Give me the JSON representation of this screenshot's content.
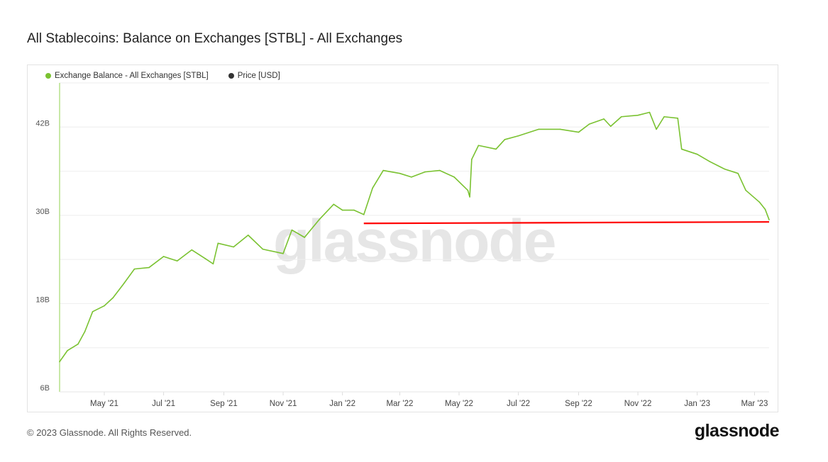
{
  "title": "All Stablecoins: Balance on Exchanges [STBL] - All Exchanges",
  "footer": "© 2023 Glassnode. All Rights Reserved.",
  "logo": "glassnode",
  "watermark": "glassnode",
  "legend": [
    {
      "label": "Exchange Balance - All Exchanges [STBL]",
      "color": "#7ac231"
    },
    {
      "label": "Price [USD]",
      "color": "#333333"
    }
  ],
  "chart_data": {
    "type": "line",
    "title": "All Stablecoins: Balance on Exchanges [STBL] - All Exchanges",
    "xlabel": "",
    "ylabel": "",
    "xlim": [
      "2021-03-16",
      "2023-03-16"
    ],
    "ylim": [
      6,
      48
    ],
    "yticks": [
      6,
      18,
      30,
      42
    ],
    "ytick_labels": [
      "6B",
      "18B",
      "30B",
      "42B"
    ],
    "ygrid": [
      6,
      12,
      18,
      24,
      30,
      36,
      42,
      48
    ],
    "xticks": [
      "2021-05-01",
      "2021-07-01",
      "2021-09-01",
      "2021-11-01",
      "2022-01-01",
      "2022-03-01",
      "2022-05-01",
      "2022-07-01",
      "2022-09-01",
      "2022-11-01",
      "2023-01-01",
      "2023-03-01"
    ],
    "xtick_labels": [
      "May '21",
      "Jul '21",
      "Sep '21",
      "Nov '21",
      "Jan '22",
      "Mar '22",
      "May '22",
      "Jul '22",
      "Sep '22",
      "Nov '22",
      "Jan '23",
      "Mar '23"
    ],
    "legend_position": "top-left",
    "series": [
      {
        "name": "Exchange Balance - All Exchanges [STBL]",
        "unit": "B",
        "color": "#7ac231",
        "x": [
          "2021-03-16",
          "2021-03-24",
          "2021-04-04",
          "2021-04-11",
          "2021-04-19",
          "2021-05-01",
          "2021-05-10",
          "2021-05-21",
          "2021-06-01",
          "2021-06-16",
          "2021-07-01",
          "2021-07-15",
          "2021-07-30",
          "2021-08-13",
          "2021-08-21",
          "2021-08-26",
          "2021-09-11",
          "2021-09-26",
          "2021-10-11",
          "2021-11-01",
          "2021-11-10",
          "2021-11-23",
          "2021-12-08",
          "2021-12-23",
          "2022-01-01",
          "2022-01-13",
          "2022-01-23",
          "2022-02-01",
          "2022-02-12",
          "2022-03-01",
          "2022-03-13",
          "2022-03-27",
          "2022-04-11",
          "2022-04-26",
          "2022-05-10",
          "2022-05-12",
          "2022-05-14",
          "2022-05-21",
          "2022-06-08",
          "2022-06-17",
          "2022-07-01",
          "2022-07-22",
          "2022-08-13",
          "2022-09-01",
          "2022-09-12",
          "2022-09-27",
          "2022-10-04",
          "2022-10-15",
          "2022-11-01",
          "2022-11-13",
          "2022-11-20",
          "2022-11-28",
          "2022-12-12",
          "2022-12-16",
          "2023-01-01",
          "2023-01-14",
          "2023-01-29",
          "2023-02-12",
          "2023-02-20",
          "2023-03-06",
          "2023-03-12",
          "2023-03-16"
        ],
        "values": [
          10.1,
          11.6,
          12.5,
          14.2,
          16.9,
          17.7,
          18.8,
          20.7,
          22.7,
          22.9,
          24.4,
          23.8,
          25.3,
          24.1,
          23.4,
          26.2,
          25.7,
          27.3,
          25.4,
          24.8,
          28.0,
          27.0,
          29.4,
          31.5,
          30.7,
          30.7,
          30.1,
          33.7,
          36.1,
          35.7,
          35.2,
          35.9,
          36.1,
          35.2,
          33.4,
          32.5,
          37.6,
          39.5,
          39.0,
          40.3,
          40.8,
          41.7,
          41.7,
          41.3,
          42.4,
          43.1,
          42.1,
          43.4,
          43.6,
          44.0,
          41.7,
          43.4,
          43.2,
          39.0,
          38.3,
          37.3,
          36.3,
          35.7,
          33.4,
          31.8,
          30.8,
          29.4
        ]
      },
      {
        "name": "Annotation line",
        "color": "#ff0000",
        "x": [
          "2022-01-23",
          "2023-03-16"
        ],
        "values": [
          28.9,
          29.1
        ]
      }
    ]
  }
}
